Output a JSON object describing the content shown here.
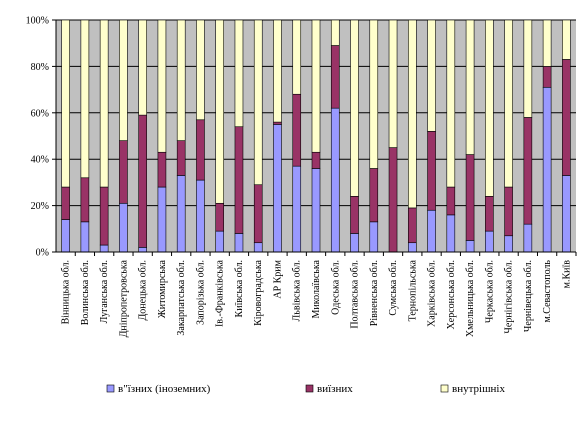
{
  "chart_data": {
    "type": "bar",
    "stacked": "percent",
    "orientation": "vertical",
    "ylim": [
      0,
      100
    ],
    "yticks": [
      "0%",
      "20%",
      "40%",
      "60%",
      "80%",
      "100%"
    ],
    "grid": true,
    "legend_position": "bottom",
    "plot_background": "#c0c0c0",
    "categories": [
      "Вінницька обл.",
      "Волинська обл.",
      "Луганська обл.",
      "Дніпропетровська",
      "Донецька обл.",
      "Житомирська",
      "Закарпатська обл.",
      "Запорізька обл.",
      "Ів.-Франківська",
      "Київська обл.",
      "Кіровоградська",
      "АР Крим",
      "Львівська обл.",
      "Миколаївська",
      "Одеська обл.",
      "Полтавська обл.",
      "Рівненська обл.",
      "Сумська обл.",
      "Тернопільська",
      "Харківська обл.",
      "Херсонська обл.",
      "Хмельницька обл.",
      "Черкаська обл.",
      "Чернігівська обл.",
      "Чернівецька обл.",
      "м.Севастополь",
      "м.Київ"
    ],
    "series": [
      {
        "name": "в\"їзних (іноземних)",
        "color": "#9999ff",
        "values": [
          14,
          13,
          3,
          21,
          2,
          28,
          33,
          31,
          9,
          8,
          4,
          55,
          37,
          36,
          62,
          8,
          13,
          0,
          4,
          18,
          16,
          5,
          9,
          7,
          12,
          71,
          33
        ]
      },
      {
        "name": "виїзних",
        "color": "#993366",
        "values": [
          14,
          19,
          25,
          27,
          57,
          15,
          15,
          26,
          12,
          46,
          25,
          1,
          31,
          7,
          27,
          16,
          23,
          45,
          15,
          34,
          12,
          37,
          15,
          21,
          46,
          9,
          50
        ]
      },
      {
        "name": "внутрішніх",
        "color": "#ffffcc",
        "values": [
          72,
          68,
          72,
          52,
          41,
          57,
          52,
          43,
          79,
          46,
          71,
          44,
          32,
          57,
          11,
          76,
          64,
          55,
          81,
          48,
          72,
          58,
          76,
          72,
          42,
          20,
          17
        ]
      }
    ]
  }
}
